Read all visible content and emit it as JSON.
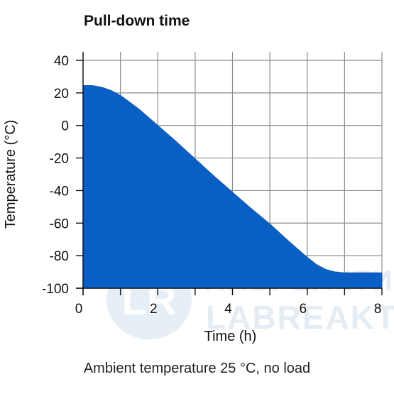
{
  "title": "Pull-down time",
  "caption": "Ambient temperature 25 °C, no load",
  "watermark": {
    "logo": "LR",
    "line1": "ЛАБРЕАКТИВ",
    "line2": "LABREAKTIV"
  },
  "colors": {
    "fill": "#0a5fc4",
    "grid": "#8c8c8c",
    "axis": "#111111"
  },
  "chart_data": {
    "type": "area",
    "title": "Pull-down time",
    "xlabel": "Time (h)",
    "ylabel": "Temperature (°C)",
    "xlim": [
      0,
      8
    ],
    "ylim": [
      -100,
      40
    ],
    "baseline": -100,
    "grid": true,
    "x_ticks": [
      0,
      2,
      4,
      6,
      8
    ],
    "y_ticks": [
      40,
      20,
      0,
      -20,
      -40,
      -60,
      -80,
      -100
    ],
    "series": [
      {
        "x": [
          0,
          0.25,
          0.5,
          0.75,
          1,
          1.5,
          2,
          2.5,
          3,
          3.5,
          4,
          4.5,
          5,
          5.5,
          6,
          6.25,
          6.5,
          6.75,
          7,
          7.5,
          8
        ],
        "y": [
          24.5,
          24.5,
          23.5,
          21.5,
          18.5,
          10,
          0,
          -10,
          -20.5,
          -31,
          -41,
          -51,
          -60.5,
          -71,
          -81,
          -85.5,
          -88.5,
          -90,
          -90.5,
          -90.5,
          -90.5
        ]
      }
    ]
  }
}
